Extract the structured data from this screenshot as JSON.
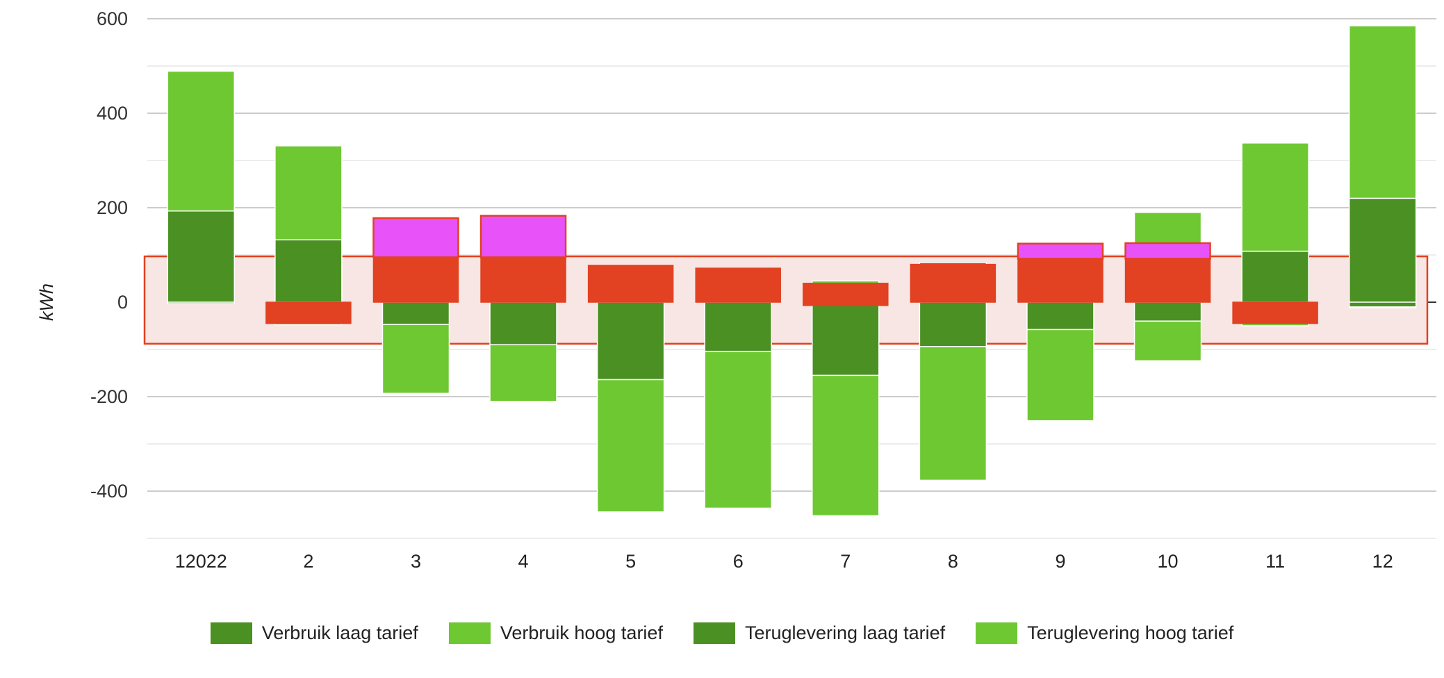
{
  "chart_data": {
    "type": "bar",
    "stacked": true,
    "title": "",
    "xlabel": "",
    "ylabel": "kWh",
    "ylim": [
      -500,
      600
    ],
    "yticks": [
      600,
      400,
      200,
      0,
      -200,
      -400
    ],
    "grid": true,
    "legend_position": "bottom",
    "categories": [
      "12022",
      "2",
      "3",
      "4",
      "5",
      "6",
      "7",
      "8",
      "9",
      "10",
      "11",
      "12"
    ],
    "series": [
      {
        "name": "Verbruik laag tarief",
        "color": "#4a9022",
        "values": [
          193,
          132,
          95,
          95,
          78,
          72,
          40,
          84,
          92,
          92,
          108,
          220
        ]
      },
      {
        "name": "Verbruik hoog tarief",
        "color": "#6ec832",
        "values": [
          296,
          199,
          85,
          88,
          0,
          0,
          5,
          0,
          33,
          98,
          229,
          365
        ]
      },
      {
        "name": "Teruglevering laag tarief",
        "color": "#4a9022",
        "values": [
          -3,
          -45,
          -47,
          -90,
          -164,
          -104,
          -155,
          -94,
          -58,
          -40,
          -45,
          -10
        ]
      },
      {
        "name": "Teruglevering hoog tarief",
        "color": "#6ec832",
        "values": [
          0,
          -3,
          -146,
          -120,
          -280,
          -332,
          -297,
          -283,
          -193,
          -84,
          -5,
          -2
        ]
      }
    ],
    "annotations": {
      "highlight_band": {
        "from": -88,
        "to": 97,
        "fill": "#f7e6e3",
        "stroke": "#e2401f"
      },
      "red_overlays": [
        {
          "category": "2",
          "from": -45,
          "to": 0
        },
        {
          "category": "3",
          "from": 0,
          "to": 95
        },
        {
          "category": "4",
          "from": 0,
          "to": 95
        },
        {
          "category": "5",
          "from": 0,
          "to": 78
        },
        {
          "category": "6",
          "from": 0,
          "to": 72
        },
        {
          "category": "7",
          "from": -7,
          "to": 40
        },
        {
          "category": "8",
          "from": 0,
          "to": 80
        },
        {
          "category": "9",
          "from": 0,
          "to": 92
        },
        {
          "category": "10",
          "from": 0,
          "to": 92
        },
        {
          "category": "11",
          "from": -45,
          "to": 0
        }
      ],
      "magenta_overlays": [
        {
          "category": "3",
          "from": 95,
          "to": 178
        },
        {
          "category": "4",
          "from": 95,
          "to": 183
        },
        {
          "category": "9",
          "from": 92,
          "to": 124
        },
        {
          "category": "10",
          "from": 92,
          "to": 125
        }
      ],
      "red_color": "#e24122",
      "magenta_color": "#e753f8"
    }
  },
  "legend": [
    {
      "label": "Verbruik laag tarief",
      "color": "#4a9022"
    },
    {
      "label": "Verbruik hoog tarief",
      "color": "#6ec832"
    },
    {
      "label": "Teruglevering laag tarief",
      "color": "#4a9022"
    },
    {
      "label": "Teruglevering hoog tarief",
      "color": "#6ec832"
    }
  ]
}
